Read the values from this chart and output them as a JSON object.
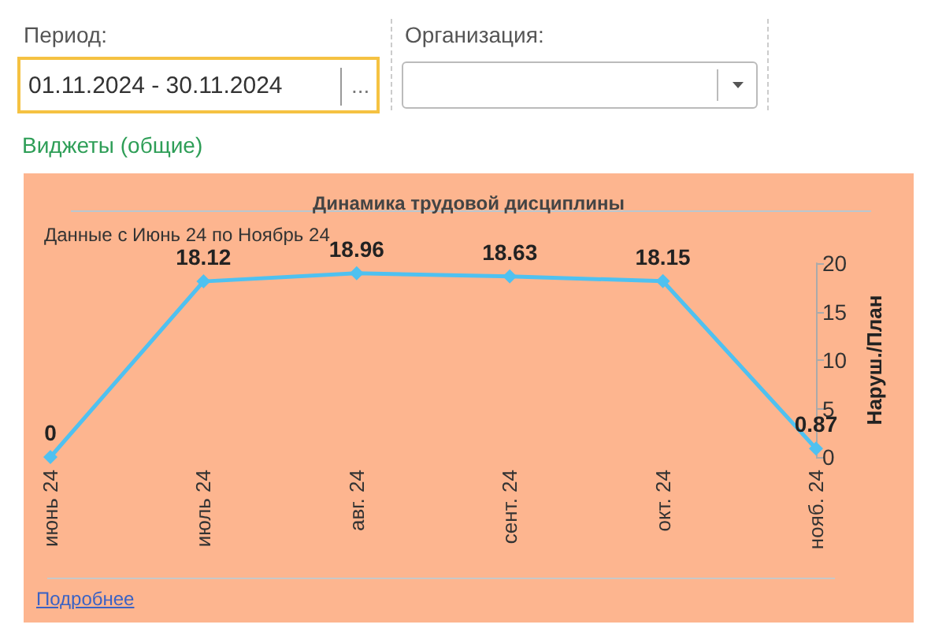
{
  "chart_data": {
    "type": "line",
    "title": "Динамика трудовой дисциплины",
    "subtitle": "Данные с Июнь 24 по Ноябрь 24",
    "ylabel": "Наруш./План",
    "annotations": [
      "Период:",
      "01.11.2024 - 30.11.2024",
      "...",
      "Организация:",
      "Виджеты (общие)",
      "Подробнее"
    ],
    "categories": [
      "июнь 24",
      "июль 24",
      "авг. 24",
      "сент. 24",
      "окт. 24",
      "нояб. 24"
    ],
    "series": [
      {
        "color": "#4fc1f0",
        "values": [
          0,
          18.12,
          18.96,
          18.63,
          18.15,
          0.87
        ]
      }
    ],
    "ylim": [
      0,
      20
    ],
    "yticks": [
      0,
      5,
      10,
      15,
      20
    ],
    "grid": false,
    "data_labels": true,
    "marker": "diamond",
    "line_style": "solid"
  }
}
